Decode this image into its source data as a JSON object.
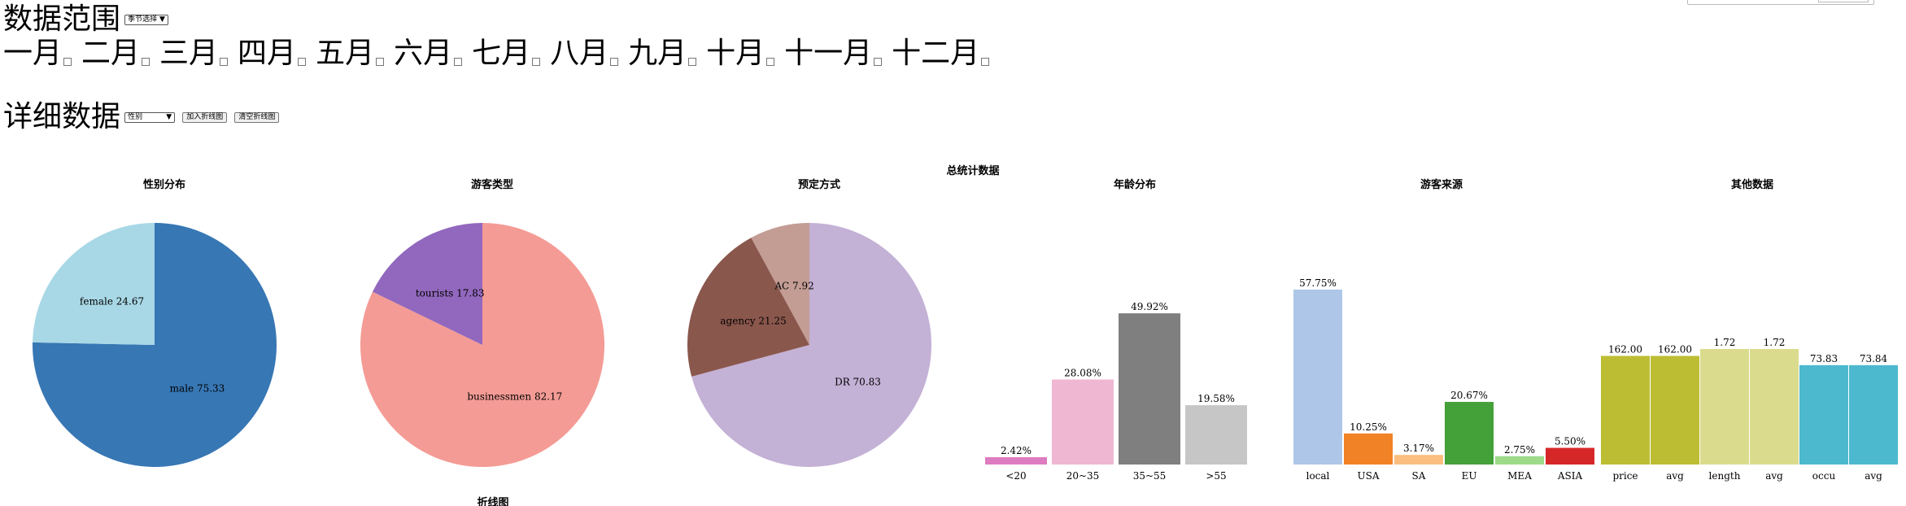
{
  "range": {
    "title": "数据范围",
    "select_label": "季节选择",
    "months": [
      "一月",
      "二月",
      "三月",
      "四月",
      "五月",
      "六月",
      "七月",
      "八月",
      "九月",
      "十月",
      "十一月",
      "十二月"
    ]
  },
  "detail": {
    "title": "详细数据",
    "select_label": "性别",
    "add_button": "加入折线图",
    "clear_button": "清空折线图"
  },
  "summary_title": "总统计数据",
  "bottom_title": "折线图",
  "colors": {
    "male": "#3777b4",
    "female": "#a8d8e6",
    "businessmen": "#f49b95",
    "tourists": "#9168bd",
    "DR": "#c4b1d6",
    "agency": "#8a574d",
    "AC": "#c39c94"
  },
  "chart_data": [
    {
      "type": "pie",
      "title": "性别分布",
      "slices": [
        {
          "label": "male",
          "value": 75.33,
          "text": "male 75.33",
          "color": "#3777b4"
        },
        {
          "label": "female",
          "value": 24.67,
          "text": "female 24.67",
          "color": "#a8d8e6"
        }
      ]
    },
    {
      "type": "pie",
      "title": "游客类型",
      "slices": [
        {
          "label": "businessmen",
          "value": 82.17,
          "text": "businessmen 82.17",
          "color": "#f49b95"
        },
        {
          "label": "tourists",
          "value": 17.83,
          "text": "tourists 17.83",
          "color": "#9168bd"
        }
      ]
    },
    {
      "type": "pie",
      "title": "预定方式",
      "slices": [
        {
          "label": "DR",
          "value": 70.83,
          "text": "DR 70.83",
          "color": "#c4b1d6"
        },
        {
          "label": "agency",
          "value": 21.25,
          "text": "agency 21.25",
          "color": "#8a574d"
        },
        {
          "label": "AC",
          "value": 7.92,
          "text": "AC 7.92",
          "color": "#c39c94"
        }
      ]
    },
    {
      "type": "bar",
      "title": "年龄分布",
      "categories": [
        "<20",
        "20~35",
        "35~55",
        ">55"
      ],
      "values": [
        2.42,
        28.08,
        49.92,
        19.58
      ],
      "labels": [
        "2.42%",
        "28.08%",
        "49.92%",
        "19.58%"
      ],
      "colors": [
        "#dd7cc0",
        "#f0b7d3",
        "#7f7f7f",
        "#c6c6c6"
      ],
      "ylim": [
        0,
        57.75
      ]
    },
    {
      "type": "bar",
      "title": "游客来源",
      "categories": [
        "local",
        "USA",
        "SA",
        "EU",
        "MEA",
        "ASIA"
      ],
      "values": [
        57.75,
        10.25,
        3.17,
        20.67,
        2.75,
        5.5
      ],
      "labels": [
        "57.75%",
        "10.25%",
        "3.17%",
        "20.67%",
        "2.75%",
        "5.50%"
      ],
      "colors": [
        "#aec6e8",
        "#f28226",
        "#fbbe7e",
        "#44a039",
        "#9dda8a",
        "#d62728"
      ],
      "ylim": [
        0,
        57.75
      ]
    },
    {
      "type": "bar",
      "title": "其他数据",
      "categories": [
        "price",
        "avg",
        "length",
        "avg",
        "occu",
        "avg"
      ],
      "values": [
        162.0,
        162.0,
        1.72,
        1.72,
        73.83,
        73.84
      ],
      "labels": [
        "162.00",
        "162.00",
        "1.72",
        "1.72",
        "73.83",
        "73.84"
      ],
      "colors": [
        "#bcbd33",
        "#bcbd33",
        "#dbdb8d",
        "#dbdb8d",
        "#4db9ce",
        "#4db9ce"
      ],
      "relative_heights": [
        0.94,
        0.94,
        1.0,
        1.0,
        0.86,
        0.86
      ]
    }
  ]
}
